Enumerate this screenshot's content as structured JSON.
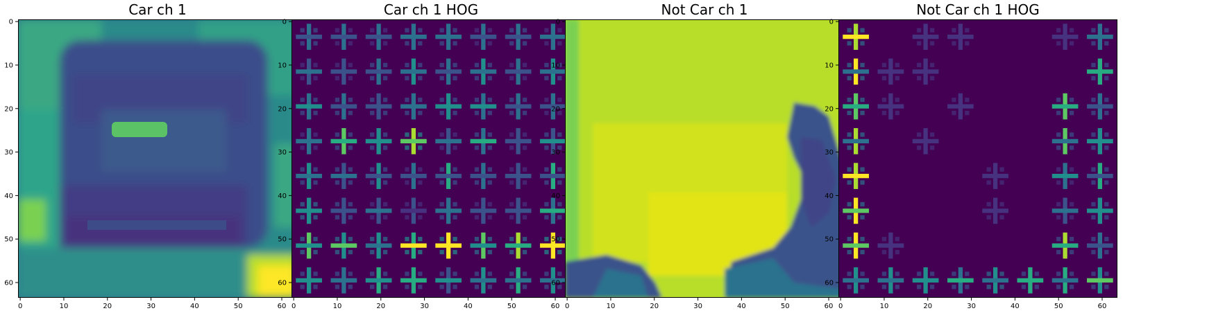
{
  "figure": {
    "panels": [
      {
        "title": "Car ch 1",
        "image": "car-channel-1-grayscale-rendered-in-viridis"
      },
      {
        "title": "Car ch 1 HOG",
        "image": "car-hog-feature-visualization"
      },
      {
        "title": "Not Car ch 1",
        "image": "not-car-channel-1-rendered-in-viridis"
      },
      {
        "title": "Not Car ch 1 HOG",
        "image": "not-car-hog-feature-visualization"
      }
    ],
    "axis": {
      "x_ticks": [
        "0",
        "10",
        "20",
        "30",
        "40",
        "50",
        "60"
      ],
      "y_ticks": [
        "0",
        "10",
        "20",
        "30",
        "40",
        "50",
        "60"
      ],
      "range": [
        -0.5,
        63.5
      ]
    },
    "colors": {
      "viridis_dark": "#440154",
      "viridis_blue": "#3b528b",
      "viridis_teal": "#21908d",
      "viridis_green": "#5dc963",
      "viridis_yellow": "#fde725"
    }
  }
}
